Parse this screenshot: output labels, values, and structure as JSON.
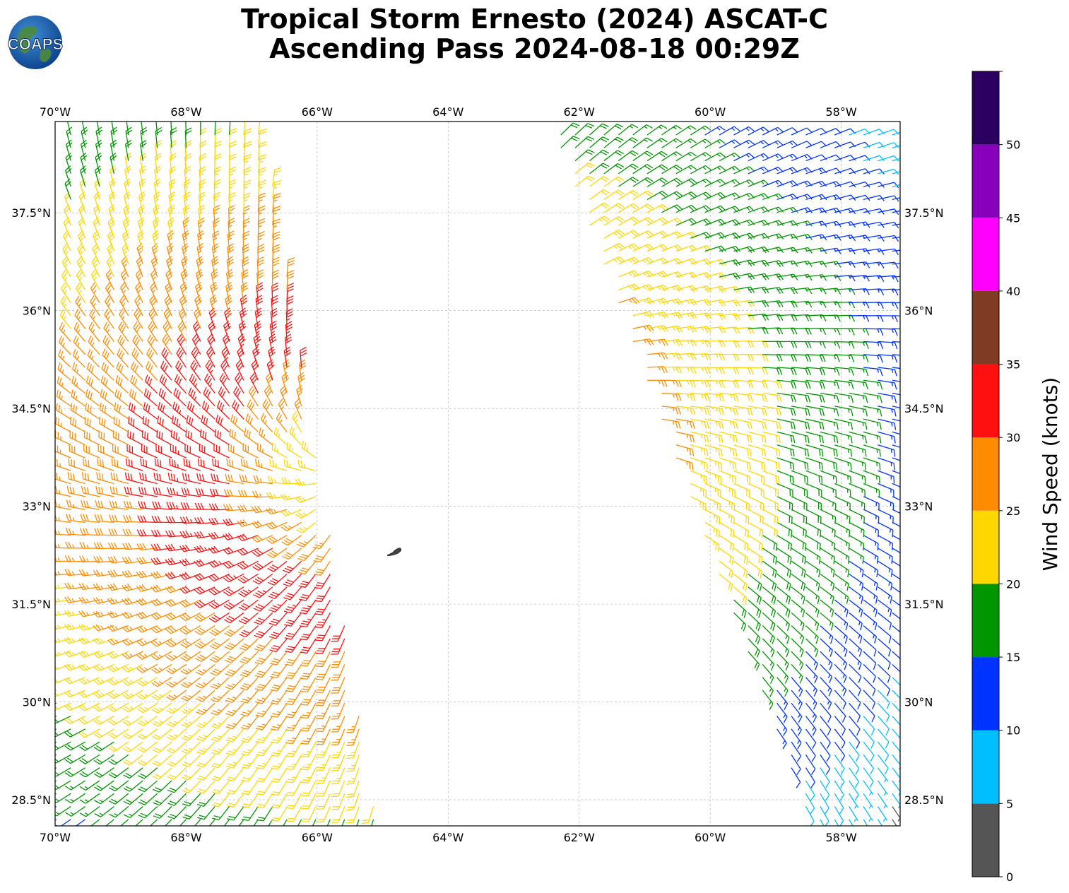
{
  "title": {
    "line1": "Tropical Storm Ernesto (2024) ASCAT-C",
    "line2": "Ascending Pass 2024-08-18 00:29Z"
  },
  "logo": {
    "text": "COAPS",
    "icon": "globe-logo-icon"
  },
  "map": {
    "lon_range": [
      -70.0,
      -57.1
    ],
    "lat_range": [
      28.1,
      38.9
    ],
    "lon_ticks": [
      {
        "value": -70,
        "label": "70°W"
      },
      {
        "value": -68,
        "label": "68°W"
      },
      {
        "value": -66,
        "label": "66°W"
      },
      {
        "value": -64,
        "label": "64°W"
      },
      {
        "value": -62,
        "label": "62°W"
      },
      {
        "value": -60,
        "label": "60°W"
      },
      {
        "value": -58,
        "label": "58°W"
      }
    ],
    "lat_ticks": [
      {
        "value": 28.5,
        "label": "28.5°N"
      },
      {
        "value": 30,
        "label": "30°N"
      },
      {
        "value": 31.5,
        "label": "31.5°N"
      },
      {
        "value": 33,
        "label": "33°N"
      },
      {
        "value": 34.5,
        "label": "34.5°N"
      },
      {
        "value": 36,
        "label": "36°N"
      },
      {
        "value": 37.5,
        "label": "37.5°N"
      }
    ],
    "gridlines": true,
    "land": {
      "name": "Bermuda",
      "lon": -64.8,
      "lat": 32.3
    },
    "storm_center": {
      "lon": -65.4,
      "lat": 33.6
    },
    "swaths": [
      {
        "lon_top": -69.9,
        "lon_bottom": -65.1,
        "lat_top": 38.8,
        "lat_bottom": 28.2,
        "width_lon": 3.1,
        "lon_edges_top": [
          -69.9,
          -66.8
        ],
        "lon_edges_bottom": [
          -70.0,
          -65.1
        ]
      },
      {
        "lon_top": -62.4,
        "lon_bottom": -57.2,
        "lat_top": 38.8,
        "lat_bottom": 28.2,
        "lon_edges_top": [
          -62.4,
          -57.1
        ],
        "lon_edges_bottom": [
          -58.5,
          -57.1
        ]
      }
    ]
  },
  "colorbar": {
    "title": "Wind Speed (knots)",
    "ticks": [
      {
        "value": 0,
        "label": "0"
      },
      {
        "value": 5,
        "label": "5"
      },
      {
        "value": 10,
        "label": "10"
      },
      {
        "value": 15,
        "label": "15"
      },
      {
        "value": 20,
        "label": "20"
      },
      {
        "value": 25,
        "label": "25"
      },
      {
        "value": 30,
        "label": "30"
      },
      {
        "value": 35,
        "label": "35"
      },
      {
        "value": 40,
        "label": "40"
      },
      {
        "value": 45,
        "label": "45"
      },
      {
        "value": 50,
        "label": "50"
      }
    ],
    "range": [
      0,
      55
    ],
    "bins": [
      {
        "min": 0,
        "max": 5,
        "color": "#555555"
      },
      {
        "min": 5,
        "max": 10,
        "color": "#00bfff"
      },
      {
        "min": 10,
        "max": 15,
        "color": "#0033ff"
      },
      {
        "min": 15,
        "max": 20,
        "color": "#009600"
      },
      {
        "min": 20,
        "max": 25,
        "color": "#ffd700"
      },
      {
        "min": 25,
        "max": 30,
        "color": "#ff8c00"
      },
      {
        "min": 30,
        "max": 35,
        "color": "#ff1010"
      },
      {
        "min": 35,
        "max": 40,
        "color": "#7f3b24"
      },
      {
        "min": 40,
        "max": 45,
        "color": "#ff00ff"
      },
      {
        "min": 45,
        "max": 50,
        "color": "#8800bb"
      },
      {
        "min": 50,
        "max": 55,
        "color": "#2c0060"
      }
    ]
  }
}
